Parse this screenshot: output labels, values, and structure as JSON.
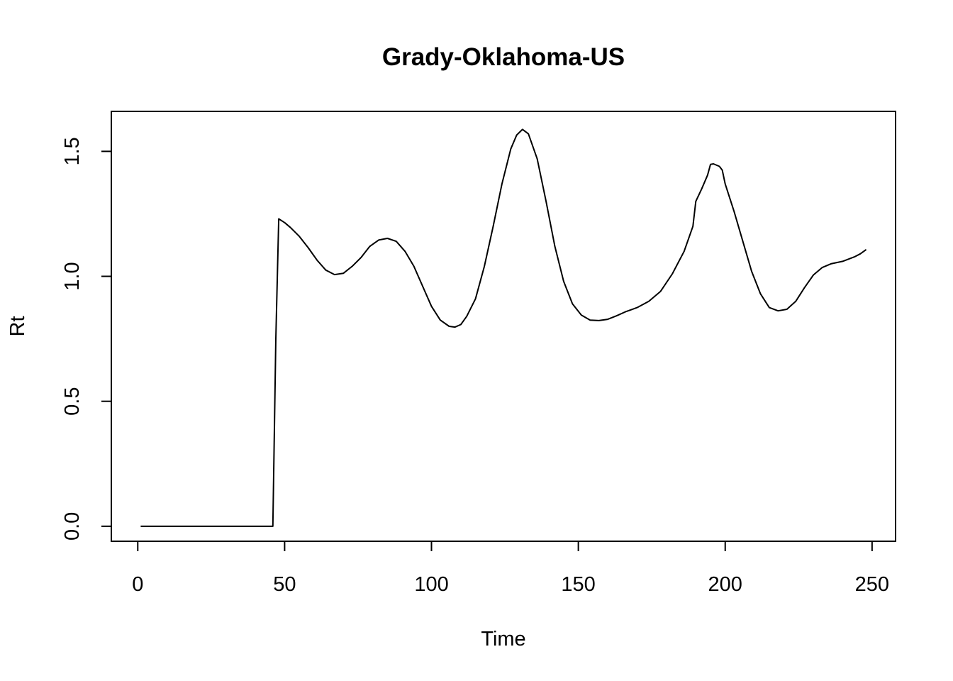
{
  "chart_data": {
    "type": "line",
    "title": "Grady-Oklahoma-US",
    "xlabel": "Time",
    "ylabel": "Rt",
    "xlim": [
      -9,
      258
    ],
    "ylim": [
      -0.06,
      1.66
    ],
    "x_ticks": [
      0,
      50,
      100,
      150,
      200,
      250
    ],
    "y_ticks": [
      0.0,
      0.5,
      1.0,
      1.5
    ],
    "x_tick_labels": [
      "0",
      "50",
      "100",
      "150",
      "200",
      "250"
    ],
    "y_tick_labels": [
      "0.0",
      "0.5",
      "1.0",
      "1.5"
    ],
    "grid": false,
    "legend": "none",
    "colors": {
      "line": "#000000",
      "frame": "#000000"
    },
    "series": [
      {
        "x": [
          1,
          10,
          20,
          30,
          40,
          46,
          47,
          48,
          50,
          52,
          55,
          58,
          61,
          64,
          67,
          70,
          73,
          76,
          79,
          82,
          85,
          88,
          91,
          94,
          97,
          100,
          103,
          106,
          108,
          110,
          112,
          115,
          118,
          121,
          124,
          127,
          129,
          131,
          133,
          136,
          139,
          142,
          145,
          148,
          151,
          154,
          157,
          160,
          163,
          166,
          170,
          174,
          178,
          182,
          186,
          189,
          190,
          192,
          194,
          195,
          196,
          198,
          199,
          200,
          203,
          206,
          209,
          212,
          215,
          218,
          221,
          224,
          227,
          230,
          233,
          236,
          240,
          244,
          246,
          248
        ],
        "y": [
          0.0,
          0.0,
          0.0,
          0.0,
          0.0,
          0.0,
          0.75,
          1.23,
          1.215,
          1.195,
          1.16,
          1.115,
          1.065,
          1.025,
          1.007,
          1.012,
          1.04,
          1.075,
          1.12,
          1.145,
          1.152,
          1.14,
          1.1,
          1.04,
          0.96,
          0.88,
          0.825,
          0.8,
          0.797,
          0.807,
          0.84,
          0.91,
          1.04,
          1.2,
          1.37,
          1.51,
          1.565,
          1.588,
          1.57,
          1.47,
          1.3,
          1.12,
          0.98,
          0.89,
          0.845,
          0.825,
          0.823,
          0.828,
          0.842,
          0.858,
          0.875,
          0.9,
          0.94,
          1.01,
          1.1,
          1.2,
          1.3,
          1.35,
          1.405,
          1.448,
          1.45,
          1.44,
          1.425,
          1.37,
          1.26,
          1.14,
          1.02,
          0.93,
          0.875,
          0.862,
          0.868,
          0.9,
          0.955,
          1.005,
          1.035,
          1.05,
          1.06,
          1.078,
          1.09,
          1.107
        ]
      }
    ]
  }
}
